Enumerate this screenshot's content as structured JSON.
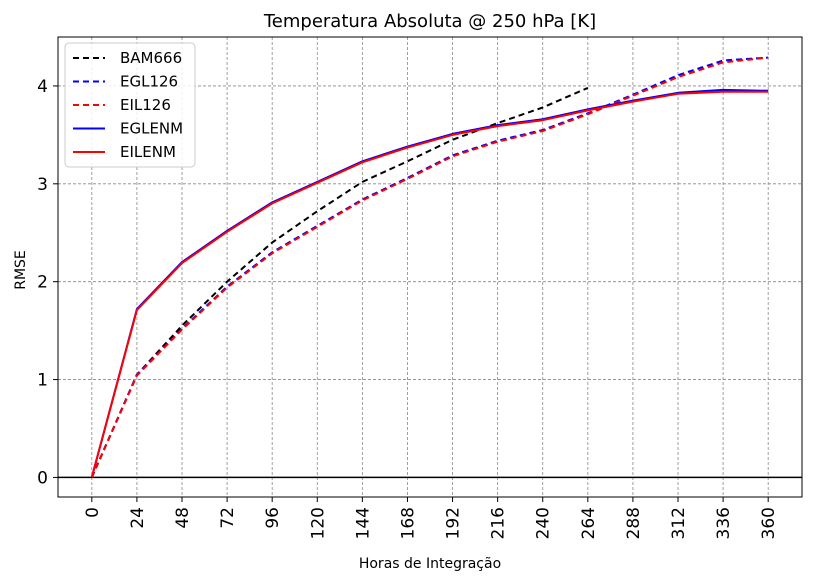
{
  "chart_data": {
    "type": "line",
    "title": "Temperatura Absoluta @ 250 hPa [K]",
    "xlabel": "Horas de Integração",
    "ylabel": "RMSE",
    "x": [
      0,
      24,
      48,
      72,
      96,
      120,
      144,
      168,
      192,
      216,
      240,
      264,
      288,
      312,
      336,
      360
    ],
    "xticks": [
      "0",
      "24",
      "48",
      "72",
      "96",
      "120",
      "144",
      "168",
      "192",
      "216",
      "240",
      "264",
      "288",
      "312",
      "336",
      "360"
    ],
    "yticks": [
      "0",
      "1",
      "2",
      "3",
      "4"
    ],
    "ytick_values": [
      0,
      1,
      2,
      3,
      4
    ],
    "xlim": [
      -18,
      378
    ],
    "ylim": [
      -0.2,
      4.5
    ],
    "grid": true,
    "zero_line": true,
    "legend_position": "top-left",
    "series": [
      {
        "name": "BAM666",
        "color": "#000000",
        "dash": true,
        "values": [
          0,
          1.05,
          1.55,
          2.0,
          2.4,
          2.72,
          3.02,
          3.23,
          3.45,
          3.62,
          3.78,
          3.98,
          null,
          null,
          null,
          null
        ]
      },
      {
        "name": "EGL126",
        "color": "#0000ff",
        "dash": true,
        "values": [
          0,
          1.05,
          1.52,
          1.95,
          2.3,
          2.57,
          2.84,
          3.06,
          3.29,
          3.44,
          3.55,
          3.72,
          3.91,
          4.11,
          4.26,
          4.29
        ]
      },
      {
        "name": "EIL126",
        "color": "#ff0000",
        "dash": true,
        "values": [
          0,
          1.04,
          1.51,
          1.94,
          2.29,
          2.56,
          2.83,
          3.05,
          3.28,
          3.43,
          3.54,
          3.71,
          3.9,
          4.09,
          4.24,
          4.29
        ]
      },
      {
        "name": "EGLENM",
        "color": "#0000ff",
        "dash": false,
        "values": [
          0,
          1.72,
          2.2,
          2.52,
          2.81,
          3.02,
          3.23,
          3.38,
          3.51,
          3.6,
          3.66,
          3.76,
          3.85,
          3.93,
          3.96,
          3.95
        ]
      },
      {
        "name": "EILENM",
        "color": "#ff0000",
        "dash": false,
        "values": [
          0,
          1.71,
          2.19,
          2.51,
          2.8,
          3.01,
          3.22,
          3.37,
          3.5,
          3.59,
          3.65,
          3.75,
          3.84,
          3.92,
          3.94,
          3.94
        ]
      }
    ]
  }
}
